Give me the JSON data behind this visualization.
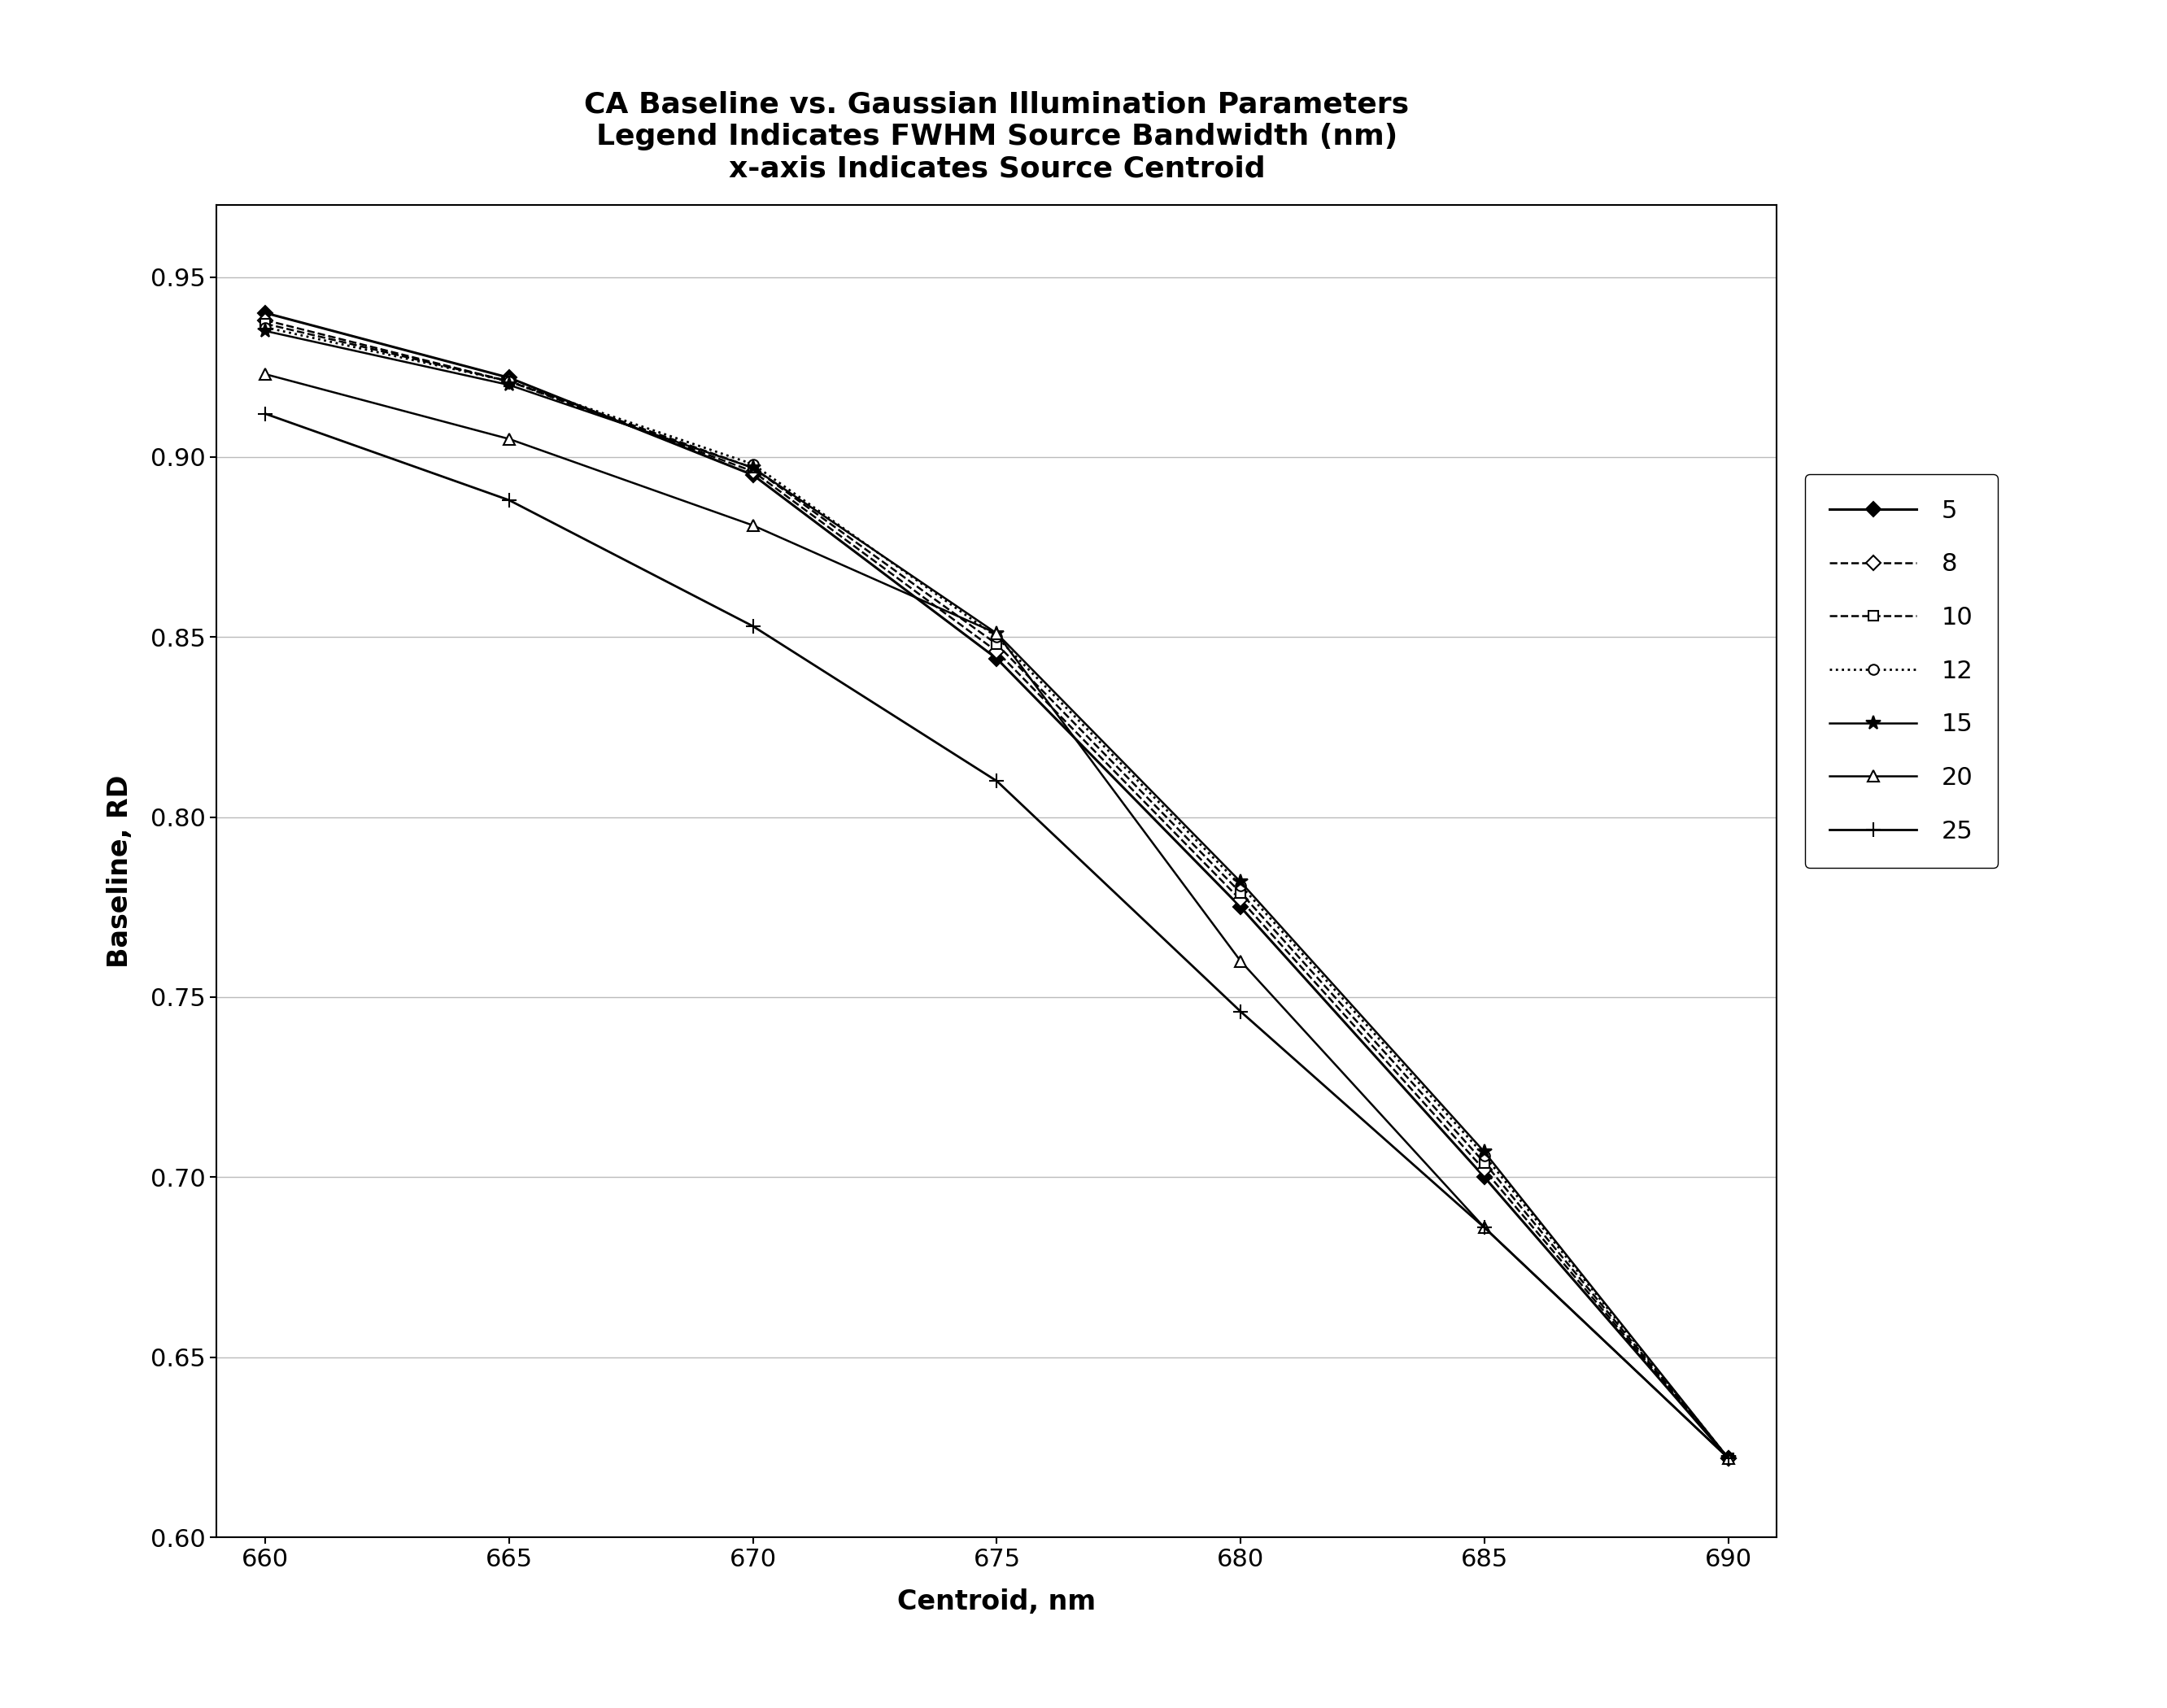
{
  "title_line1": "CA Baseline vs. Gaussian Illumination Parameters",
  "title_line2": "Legend Indicates FWHM Source Bandwidth (nm)",
  "title_line3": "x-axis Indicates Source Centroid",
  "xlabel": "Centroid, nm",
  "ylabel": "Baseline, RD",
  "x_values": [
    660,
    665,
    670,
    675,
    680,
    685,
    690
  ],
  "ylim": [
    0.6,
    0.97
  ],
  "xlim": [
    659,
    691
  ],
  "yticks": [
    0.6,
    0.65,
    0.7,
    0.75,
    0.8,
    0.85,
    0.9,
    0.95
  ],
  "xticks": [
    660,
    665,
    670,
    675,
    680,
    685,
    690
  ],
  "series": [
    {
      "label": "5",
      "y_values": [
        0.94,
        0.922,
        0.895,
        0.844,
        0.775,
        0.7,
        0.622
      ],
      "linestyle": "-",
      "marker": "D",
      "markersize": 9,
      "linewidth": 2.2,
      "color": "#000000",
      "markerfacecolor": "#000000"
    },
    {
      "label": "8",
      "y_values": [
        0.938,
        0.921,
        0.896,
        0.846,
        0.777,
        0.702,
        0.622
      ],
      "linestyle": "--",
      "marker": "D",
      "markersize": 9,
      "linewidth": 1.8,
      "color": "#000000",
      "markerfacecolor": "#ffffff"
    },
    {
      "label": "10",
      "y_values": [
        0.937,
        0.921,
        0.897,
        0.848,
        0.779,
        0.704,
        0.622
      ],
      "linestyle": "--",
      "marker": "s",
      "markersize": 9,
      "linewidth": 1.8,
      "color": "#000000",
      "markerfacecolor": "#ffffff"
    },
    {
      "label": "12",
      "y_values": [
        0.936,
        0.921,
        0.898,
        0.85,
        0.781,
        0.706,
        0.622
      ],
      "linestyle": ":",
      "marker": "o",
      "markersize": 9,
      "linewidth": 2.0,
      "color": "#000000",
      "markerfacecolor": "#ffffff"
    },
    {
      "label": "15",
      "y_values": [
        0.935,
        0.92,
        0.897,
        0.851,
        0.782,
        0.707,
        0.622
      ],
      "linestyle": "-",
      "marker": "*",
      "markersize": 13,
      "linewidth": 1.8,
      "color": "#000000",
      "markerfacecolor": "#000000"
    },
    {
      "label": "20",
      "y_values": [
        0.923,
        0.905,
        0.881,
        0.851,
        0.76,
        0.686,
        0.622
      ],
      "linestyle": "-",
      "marker": "^",
      "markersize": 10,
      "linewidth": 1.8,
      "color": "#000000",
      "markerfacecolor": "#ffffff"
    },
    {
      "label": "25",
      "y_values": [
        0.912,
        0.888,
        0.853,
        0.81,
        0.746,
        0.686,
        0.622
      ],
      "linestyle": "-",
      "marker": "+",
      "markersize": 13,
      "linewidth": 2.0,
      "color": "#000000",
      "markerfacecolor": "#000000"
    }
  ],
  "background_color": "#ffffff",
  "grid_color": "#bbbbbb",
  "title_fontsize": 26,
  "axis_label_fontsize": 24,
  "tick_fontsize": 22,
  "legend_fontsize": 22
}
